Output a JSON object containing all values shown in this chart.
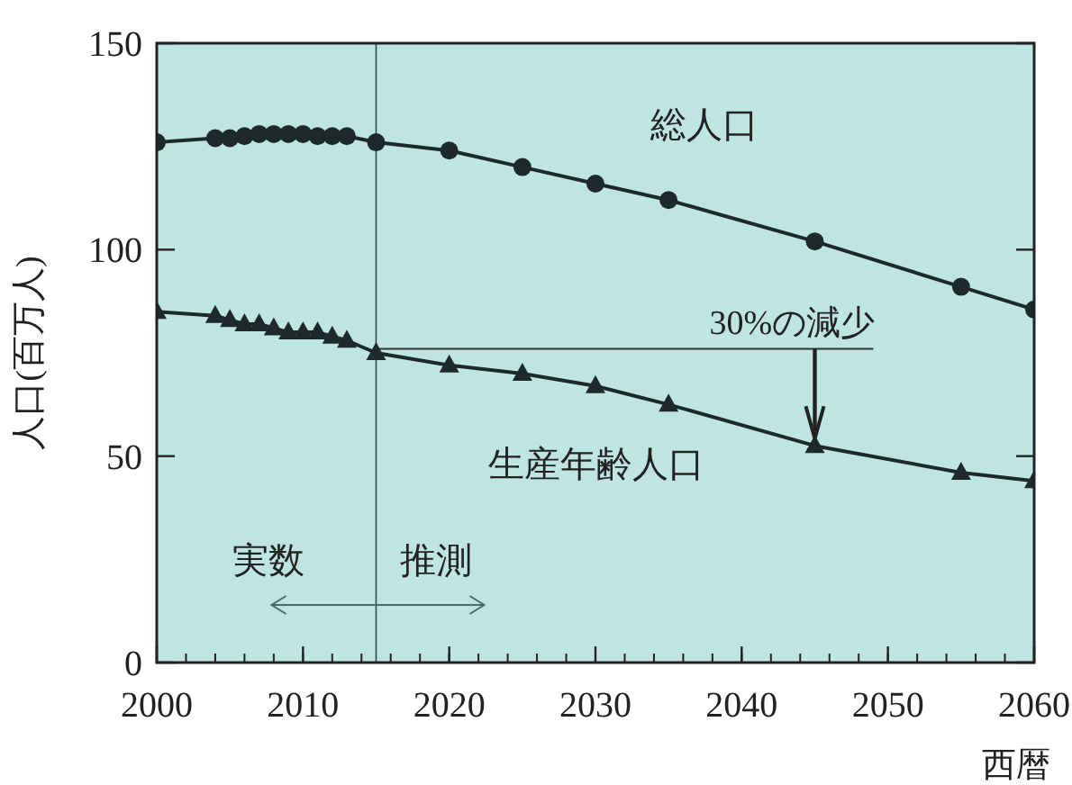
{
  "chart_data": {
    "type": "line",
    "xlabel": "西暦",
    "ylabel": "人口(百万人)",
    "xlim": [
      2000,
      2060
    ],
    "xticks": [
      2000,
      2010,
      2020,
      2030,
      2040,
      2050,
      2060
    ],
    "ylim": [
      0,
      150
    ],
    "yticks": [
      0,
      50,
      100,
      150
    ],
    "grid": false,
    "series": [
      {
        "name": "総人口",
        "color": "#1e2a2a",
        "marker": "circle",
        "x": [
          2000,
          2004,
          2005,
          2006,
          2007,
          2008,
          2009,
          2010,
          2011,
          2012,
          2013,
          2015,
          2020,
          2025,
          2030,
          2035,
          2045,
          2055,
          2060
        ],
        "values": [
          126,
          127,
          127,
          127.5,
          128,
          128,
          128,
          128,
          127.5,
          127.5,
          127.5,
          126,
          124,
          120,
          116,
          112,
          102,
          91,
          85.5
        ]
      },
      {
        "name": "生産年齢人口",
        "color": "#1e2a2a",
        "marker": "triangle",
        "x": [
          2000,
          2004,
          2005,
          2006,
          2007,
          2008,
          2009,
          2010,
          2011,
          2012,
          2013,
          2015,
          2020,
          2025,
          2030,
          2035,
          2045,
          2055,
          2060
        ],
        "values": [
          85,
          84,
          83,
          82,
          82,
          81,
          80,
          80,
          80,
          79,
          78,
          75,
          72,
          70,
          67,
          62.5,
          52.5,
          46,
          44
        ]
      }
    ],
    "ref_lines": [
      {
        "axis": "x",
        "value": 2015,
        "color": "#2e4a4a"
      },
      {
        "axis": "y",
        "value": 76,
        "label": "30%の減少",
        "color": "#333333"
      }
    ],
    "annotations": [
      "実数",
      "推測"
    ]
  }
}
